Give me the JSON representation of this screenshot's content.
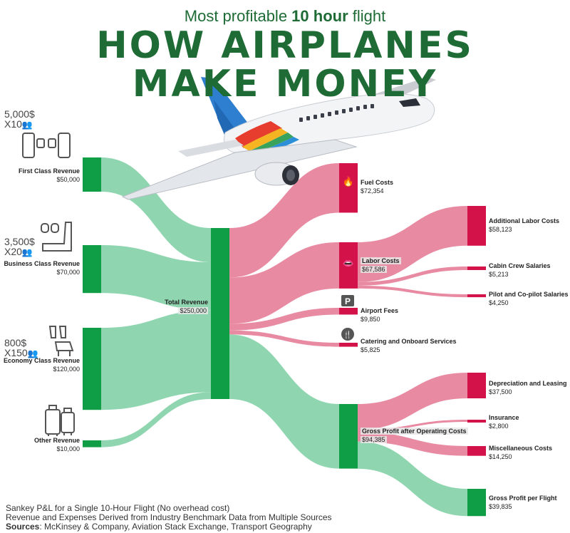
{
  "header": {
    "subtitle_pre": "Most profitable ",
    "subtitle_bold": "10 hour",
    "subtitle_post": " flight",
    "title_line1": "HOW AIRPLANES",
    "title_line2": "MAKE MONEY"
  },
  "colors": {
    "revenue_node": "#0f9d46",
    "revenue_link": "#8fd6b0",
    "cost_node": "#d4124a",
    "cost_link": "#e98aa3"
  },
  "classes": {
    "first": {
      "price": "5,000$",
      "count": "X10",
      "icon": "first-class-seats-icon"
    },
    "business": {
      "price": "3,500$",
      "count": "X20",
      "icon": "business-seat-icon"
    },
    "economy": {
      "price": "800$",
      "count": "X150",
      "icon": "economy-seats-icon"
    },
    "other": {
      "icon": "luggage-icon"
    }
  },
  "nodes": {
    "first": {
      "name": "First Class Revenue",
      "amount": "$50,000"
    },
    "business": {
      "name": "Business Class Revenue",
      "amount": "$70,000"
    },
    "economy": {
      "name": "Economy Class Revenue",
      "amount": "$120,000"
    },
    "other": {
      "name": "Other Revenue",
      "amount": "$10,000"
    },
    "total": {
      "name": "Total Revenue",
      "amount": "$250,000"
    },
    "fuel": {
      "name": "Fuel Costs",
      "amount": "$72,354",
      "icon": "fire-icon"
    },
    "labor": {
      "name": "Labor Costs",
      "amount": "$67,586",
      "icon": "lips-icon"
    },
    "airport": {
      "name": "Airport Fees",
      "amount": "$9,850",
      "icon": "parking-icon"
    },
    "catering": {
      "name": "Catering and Onboard Services",
      "amount": "$5,825",
      "icon": "fork-knife-icon"
    },
    "gross": {
      "name": "Gross Profit after Operating Costs",
      "amount": "$94,385"
    },
    "addlabor": {
      "name": "Additional Labor Costs",
      "amount": "$58,123"
    },
    "cabin": {
      "name": "Cabin Crew Salaries",
      "amount": "$5,213"
    },
    "pilot": {
      "name": "Pilot and Co-pilot Salaries",
      "amount": "$4,250"
    },
    "deprec": {
      "name": "Depreciation and Leasing",
      "amount": "$37,500"
    },
    "insurance": {
      "name": "Insurance",
      "amount": "$2,800"
    },
    "misc": {
      "name": "Miscellaneous Costs",
      "amount": "$14,250"
    },
    "profit": {
      "name": "Gross Profit per Flight",
      "amount": "$39,835"
    }
  },
  "chart_data": {
    "type": "sankey",
    "links": [
      {
        "source": "First Class Revenue",
        "target": "Total Revenue",
        "value": 50000
      },
      {
        "source": "Business Class Revenue",
        "target": "Total Revenue",
        "value": 70000
      },
      {
        "source": "Economy Class Revenue",
        "target": "Total Revenue",
        "value": 120000
      },
      {
        "source": "Other Revenue",
        "target": "Total Revenue",
        "value": 10000
      },
      {
        "source": "Total Revenue",
        "target": "Fuel Costs",
        "value": 72354
      },
      {
        "source": "Total Revenue",
        "target": "Labor Costs",
        "value": 67586
      },
      {
        "source": "Total Revenue",
        "target": "Airport Fees",
        "value": 9850
      },
      {
        "source": "Total Revenue",
        "target": "Catering and Onboard Services",
        "value": 5825
      },
      {
        "source": "Total Revenue",
        "target": "Gross Profit after Operating Costs",
        "value": 94385
      },
      {
        "source": "Labor Costs",
        "target": "Additional Labor Costs",
        "value": 58123
      },
      {
        "source": "Labor Costs",
        "target": "Cabin Crew Salaries",
        "value": 5213
      },
      {
        "source": "Labor Costs",
        "target": "Pilot and Co-pilot Salaries",
        "value": 4250
      },
      {
        "source": "Gross Profit after Operating Costs",
        "target": "Depreciation and Leasing",
        "value": 37500
      },
      {
        "source": "Gross Profit after Operating Costs",
        "target": "Insurance",
        "value": 2800
      },
      {
        "source": "Gross Profit after Operating Costs",
        "target": "Miscellaneous Costs",
        "value": 14250
      },
      {
        "source": "Gross Profit after Operating Costs",
        "target": "Gross Profit per Flight",
        "value": 39835
      }
    ]
  },
  "footer": {
    "line1": "Sankey P&L for a Single 10-Hour Flight (No overhead cost)",
    "line2": "Revenue and Expenses Derived from Industry Benchmark Data from Multiple Sources",
    "sources_label": "Sources",
    "sources_text": ": McKinsey & Company, Aviation Stack Exchange, Transport Geography"
  }
}
